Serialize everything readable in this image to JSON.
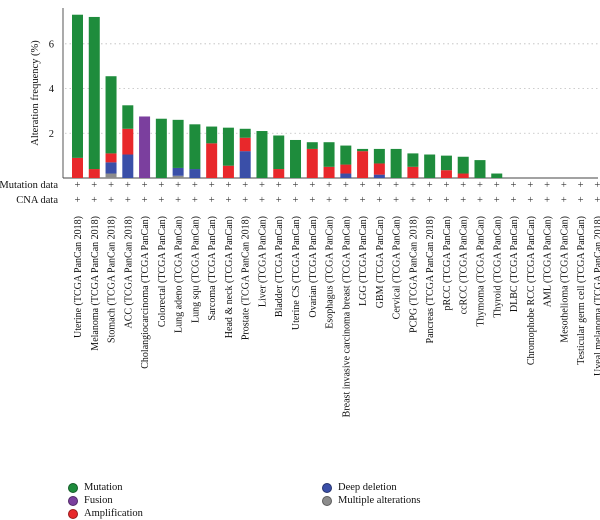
{
  "chart_data": {
    "type": "bar",
    "stacked": true,
    "ylabel": "Alteration frequency (%)",
    "yticks": [
      2,
      4,
      6
    ],
    "ylim": [
      0,
      7.6
    ],
    "grid": "horizontal dotted",
    "row_labels": [
      "Mutation data",
      "CNA data"
    ],
    "row_marker": "+",
    "categories": [
      "Uterine (TCGA PanCan 2018)",
      "Melanoma (TCGA PanCan 2018)",
      "Stomach (TCGA PanCan 2018)",
      "ACC (TCGA PanCan 2018)",
      "Cholangiocarcinoma (TCGA PanCan)",
      "Colorectal (TCGA PanCan)",
      "Lung adeno (TCGA PanCan)",
      "Lung squ (TCGA PanCan)",
      "Sarcoma (TCGA PanCan)",
      "Head & neck (TCGA PanCan)",
      "Prostate (TCGA PanCan 2018)",
      "Liver (TCGA PanCan)",
      "Bladder (TCGA PanCan)",
      "Uterine CS (TCGA PanCan)",
      "Ovarian (TCGA PanCan)",
      "Esophagus (TCGA PanCan)",
      "Breast invasive carcinoma breast (TCGA PanCan)",
      "LGG (TCGA PanCan)",
      "GBM (TCGA PanCan)",
      "Cervical (TCGA PanCan)",
      "PCPG (TCGA PanCan 2018)",
      "Pancreas (TCGA PanCan 2018)",
      "pRCC (TCGA PanCan)",
      "ccRCC (TCGA PanCan)",
      "Thymoma (TCGA PanCan)",
      "Thyroid (TCGA PanCan)",
      "DLBC (TCGA PanCan)",
      "Chromophobe RCC (TCGA PanCan)",
      "AML (TCGA PanCan)",
      "Mesothelioma (TCGA PanCan)",
      "Testicular germ cell (TCGA PanCan)",
      "Uveal melanoma (TCGA PanCan 2018)"
    ],
    "series": [
      {
        "name": "Multiple alterations",
        "color": "#8c8c8c",
        "values": [
          0,
          0,
          0.2,
          0,
          0,
          0,
          0.1,
          0,
          0,
          0,
          0,
          0,
          0,
          0,
          0,
          0,
          0,
          0,
          0,
          0,
          0,
          0,
          0,
          0,
          0,
          0,
          0,
          0,
          0,
          0,
          0,
          0
        ]
      },
      {
        "name": "Deep deletion",
        "color": "#3a4fa8",
        "values": [
          0,
          0,
          0.5,
          1.05,
          0,
          0,
          0.35,
          0.4,
          0,
          0,
          1.2,
          0,
          0,
          0,
          0,
          0,
          0.2,
          0,
          0.15,
          0,
          0,
          0,
          0,
          0,
          0,
          0,
          0,
          0,
          0,
          0,
          0,
          0
        ]
      },
      {
        "name": "Amplification",
        "color": "#e8282b",
        "values": [
          0.9,
          0.4,
          0.4,
          1.15,
          0,
          0,
          0,
          0,
          1.55,
          0.55,
          0.6,
          0,
          0.4,
          0,
          1.3,
          0.5,
          0.4,
          1.2,
          0.5,
          0,
          0.5,
          0,
          0.35,
          0.2,
          0,
          0,
          0,
          0,
          0,
          0,
          0,
          0
        ]
      },
      {
        "name": "Fusion",
        "color": "#7b3f9e",
        "values": [
          0,
          0,
          0,
          0,
          2.75,
          0,
          0,
          0,
          0,
          0,
          0,
          0,
          0,
          0,
          0,
          0,
          0,
          0,
          0,
          0,
          0,
          0,
          0,
          0,
          0,
          0,
          0,
          0,
          0,
          0,
          0,
          0
        ]
      },
      {
        "name": "Mutation",
        "color": "#1e8c3c",
        "values": [
          6.4,
          6.8,
          3.45,
          1.05,
          0,
          2.65,
          2.15,
          2.0,
          0.75,
          1.7,
          0.4,
          2.1,
          1.5,
          1.7,
          0.3,
          1.1,
          0.85,
          0.1,
          0.65,
          1.3,
          0.6,
          1.05,
          0.65,
          0.75,
          0.8,
          0.2,
          0,
          0,
          0,
          0,
          0,
          0
        ]
      }
    ],
    "legend": [
      {
        "name": "Mutation",
        "color": "#1e8c3c"
      },
      {
        "name": "Fusion",
        "color": "#7b3f9e"
      },
      {
        "name": "Amplification",
        "color": "#e8282b"
      },
      {
        "name": "Deep deletion",
        "color": "#3a4fa8"
      },
      {
        "name": "Multiple alterations",
        "color": "#8c8c8c"
      }
    ]
  }
}
